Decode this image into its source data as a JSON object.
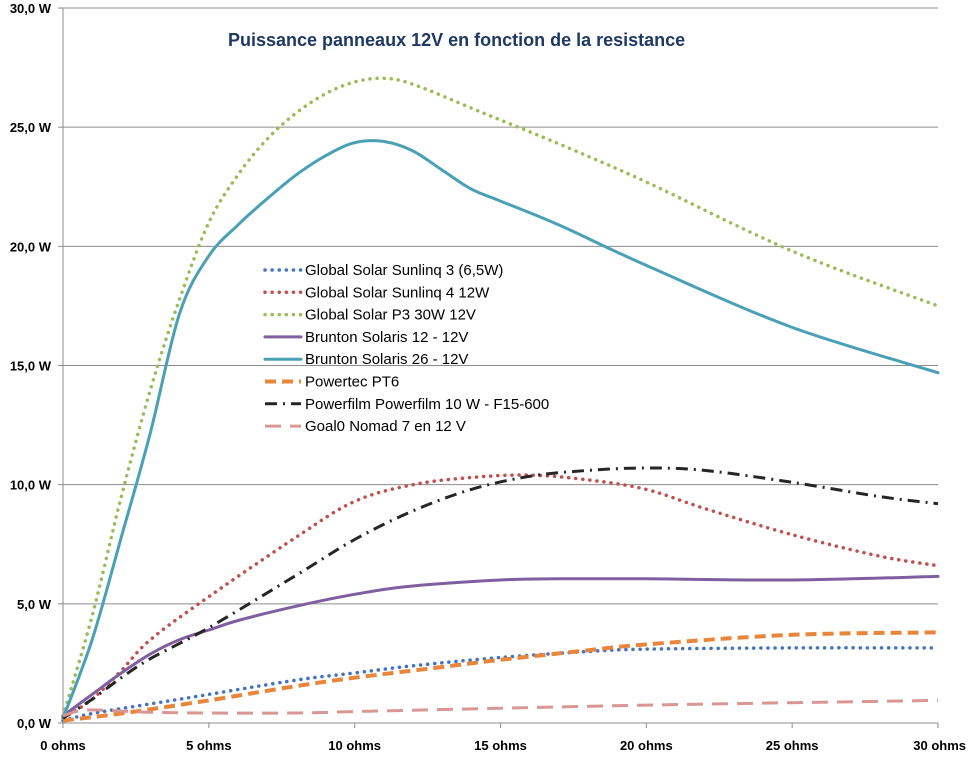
{
  "chart_data": {
    "type": "line",
    "title": "Puissance  panneaux  12V en fonction de la resistance",
    "xlabel": "",
    "ylabel": "",
    "xlim": [
      0,
      30
    ],
    "ylim": [
      0,
      30
    ],
    "x_ticks": [
      {
        "value": 0,
        "label": "0 ohms"
      },
      {
        "value": 5,
        "label": "5 ohms"
      },
      {
        "value": 10,
        "label": "10 ohms"
      },
      {
        "value": 15,
        "label": "15 ohms"
      },
      {
        "value": 20,
        "label": "20 ohms"
      },
      {
        "value": 25,
        "label": "25 ohms"
      },
      {
        "value": 30,
        "label": "30 ohms"
      }
    ],
    "y_ticks": [
      {
        "value": 0,
        "label": "0,0 W"
      },
      {
        "value": 5,
        "label": "5,0 W"
      },
      {
        "value": 10,
        "label": "10,0 W"
      },
      {
        "value": 15,
        "label": "15,0 W"
      },
      {
        "value": 20,
        "label": "20,0 W"
      },
      {
        "value": 25,
        "label": "25,0 W"
      },
      {
        "value": 30,
        "label": "30,0 W"
      }
    ],
    "grid": true,
    "legend_position": "center-left",
    "series": [
      {
        "name": "Global Solar Sunlinq 3 (6,5W)",
        "color": "#4472c4",
        "dash": "dotted",
        "x": [
          0,
          1,
          3,
          5,
          8,
          10,
          12,
          15,
          18,
          20,
          25,
          30
        ],
        "y": [
          0.1,
          0.4,
          0.8,
          1.2,
          1.8,
          2.1,
          2.4,
          2.75,
          3.0,
          3.1,
          3.15,
          3.15
        ]
      },
      {
        "name": "Global Solar Sunlinq 4 12W",
        "color": "#c0504d",
        "dash": "dotted",
        "x": [
          0,
          1,
          2,
          3,
          5,
          8,
          10,
          12,
          14,
          16,
          18,
          20,
          22,
          25,
          28,
          30
        ],
        "y": [
          0.2,
          1.0,
          2.2,
          3.5,
          5.3,
          7.8,
          9.3,
          10.0,
          10.3,
          10.4,
          10.2,
          9.8,
          9.0,
          7.9,
          7.0,
          6.6
        ]
      },
      {
        "name": "Global Solar P3 30W 12V",
        "color": "#9bbb59",
        "dash": "dotted",
        "x": [
          0,
          1,
          2,
          3,
          4,
          5,
          6,
          7,
          8,
          9,
          10,
          11,
          12,
          14,
          15,
          17,
          20,
          25,
          30
        ],
        "y": [
          0.3,
          4.5,
          9.5,
          14.0,
          17.8,
          21.0,
          23.0,
          24.5,
          25.6,
          26.4,
          26.9,
          27.05,
          26.8,
          25.8,
          25.3,
          24.3,
          22.7,
          19.8,
          17.5
        ]
      },
      {
        "name": "Brunton Solaris 12 - 12V",
        "color": "#7f5f9f",
        "dash": "solid",
        "x": [
          0,
          1,
          2,
          3,
          4,
          5,
          6,
          8,
          10,
          12,
          15,
          17,
          20,
          25,
          30
        ],
        "y": [
          0.3,
          1.2,
          2.1,
          2.9,
          3.5,
          3.9,
          4.3,
          4.9,
          5.4,
          5.75,
          6.0,
          6.05,
          6.05,
          6.0,
          6.15
        ]
      },
      {
        "name": "Brunton Solaris 26 - 12V",
        "color": "#4aa0b5",
        "dash": "solid",
        "x": [
          0,
          1,
          2,
          3,
          4,
          5,
          6,
          7,
          8,
          9,
          10,
          11,
          12,
          13,
          14,
          15,
          17,
          20,
          25,
          30
        ],
        "y": [
          0.2,
          3.5,
          7.8,
          12.2,
          17.2,
          19.6,
          20.9,
          22.0,
          23.0,
          23.8,
          24.35,
          24.4,
          24.0,
          23.2,
          22.4,
          21.9,
          20.9,
          19.2,
          16.6,
          14.7
        ]
      },
      {
        "name": "Powertec PT6",
        "color": "#e8863b",
        "dash": "dashed",
        "x": [
          0,
          2,
          5,
          8,
          10,
          13,
          15,
          18,
          20,
          25,
          30
        ],
        "y": [
          0.1,
          0.4,
          0.95,
          1.55,
          1.9,
          2.35,
          2.65,
          3.05,
          3.3,
          3.7,
          3.8
        ]
      },
      {
        "name": "Powerfilm Powerfilm 10 W - F15-600",
        "color": "#262626",
        "dash": "dashdot",
        "x": [
          0,
          1,
          2,
          3,
          5,
          8,
          10,
          12,
          14,
          16,
          18,
          20,
          22,
          25,
          28,
          30
        ],
        "y": [
          0.2,
          1.0,
          1.9,
          2.7,
          4.0,
          6.2,
          7.7,
          8.9,
          9.8,
          10.35,
          10.6,
          10.7,
          10.6,
          10.1,
          9.5,
          9.2
        ]
      },
      {
        "name": "Goal0 Nomad 7 en 12 V",
        "color": "#d99694",
        "dash": "longdash",
        "x": [
          0,
          0.5,
          1,
          2,
          3,
          5,
          8,
          10,
          15,
          20,
          25,
          30
        ],
        "y": [
          0.3,
          0.5,
          0.55,
          0.5,
          0.45,
          0.42,
          0.42,
          0.48,
          0.62,
          0.75,
          0.85,
          0.95
        ]
      }
    ]
  }
}
